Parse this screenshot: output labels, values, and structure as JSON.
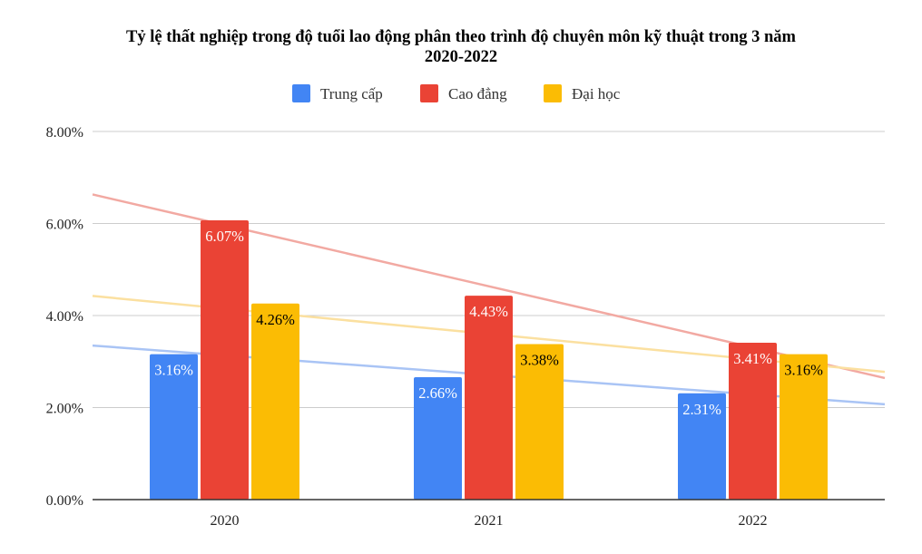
{
  "chart_data": {
    "type": "bar",
    "title_lines": [
      "Tỷ lệ thất nghiệp trong độ tuổi lao động phân theo trình độ chuyên môn kỹ thuật trong 3 năm",
      "2020-2022"
    ],
    "categories": [
      "2020",
      "2021",
      "2022"
    ],
    "series": [
      {
        "name": "Trung cấp",
        "color": "#4285F4",
        "values": [
          3.16,
          2.66,
          2.31
        ],
        "labels": [
          "3.16%",
          "2.66%",
          "2.31%"
        ],
        "label_color": "#ffffff",
        "trend_color": "#A9C4F5"
      },
      {
        "name": "Cao đẳng",
        "color": "#EA4335",
        "values": [
          6.07,
          4.43,
          3.41
        ],
        "labels": [
          "6.07%",
          "4.43%",
          "3.41%"
        ],
        "label_color": "#ffffff",
        "trend_color": "#F2A9A2"
      },
      {
        "name": "Đại học",
        "color": "#FBBC04",
        "values": [
          4.26,
          3.38,
          3.16
        ],
        "labels": [
          "4.26%",
          "3.38%",
          "3.16%"
        ],
        "label_color": "#000000",
        "trend_color": "#FBE0A0"
      }
    ],
    "y_ticks": [
      "0.00%",
      "2.00%",
      "4.00%",
      "6.00%",
      "8.00%"
    ],
    "y_tick_values": [
      0,
      2,
      4,
      6,
      8
    ],
    "ylim": [
      0,
      8
    ],
    "xlabel": "",
    "ylabel": "",
    "legend_position": "top-center",
    "grid": true,
    "trendlines": "linear"
  }
}
